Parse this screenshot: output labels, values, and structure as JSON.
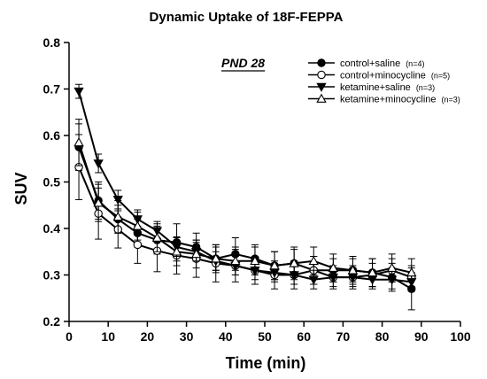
{
  "chart_data": {
    "type": "line",
    "title": "Dynamic Uptake of 18F-FEPPA",
    "xlabel": "Time (min)",
    "ylabel": "SUV",
    "annotation": "PND 28",
    "xlim": [
      0,
      100
    ],
    "ylim": [
      0.2,
      0.8
    ],
    "xticks": [
      "0",
      "10",
      "20",
      "30",
      "40",
      "50",
      "60",
      "70",
      "80",
      "90",
      "100"
    ],
    "yticks": [
      "0.2",
      "0.3",
      "0.4",
      "0.5",
      "0.6",
      "0.7",
      "0.8"
    ],
    "grid": false,
    "legend_position": "top-right",
    "x": [
      2.5,
      7.5,
      12.5,
      17.5,
      22.5,
      27.5,
      32.5,
      37.5,
      42.5,
      47.5,
      52.5,
      57.5,
      62.5,
      67.5,
      72.5,
      77.5,
      82.5,
      87.5
    ],
    "series": [
      {
        "name": "control+saline",
        "n_label": "(n=4)",
        "marker": "filled-circle",
        "values": [
          0.575,
          0.46,
          0.42,
          0.39,
          0.375,
          0.37,
          0.36,
          0.335,
          0.345,
          0.335,
          0.32,
          0.325,
          0.31,
          0.31,
          0.31,
          0.305,
          0.295,
          0.27
        ],
        "errors": [
          0.05,
          0.04,
          0.03,
          0.03,
          0.03,
          0.04,
          0.03,
          0.025,
          0.035,
          0.03,
          0.03,
          0.035,
          0.03,
          0.025,
          0.025,
          0.03,
          0.03,
          0.045
        ]
      },
      {
        "name": "control+minocycline",
        "n_label": "(n=5)",
        "marker": "open-circle",
        "values": [
          0.532,
          0.432,
          0.398,
          0.365,
          0.352,
          0.342,
          0.335,
          0.325,
          0.32,
          0.31,
          0.3,
          0.3,
          0.31,
          0.295,
          0.295,
          0.3,
          0.31,
          0.295
        ],
        "errors": [
          0.07,
          0.055,
          0.04,
          0.04,
          0.045,
          0.04,
          0.04,
          0.04,
          0.035,
          0.03,
          0.03,
          0.03,
          0.03,
          0.025,
          0.025,
          0.025,
          0.025,
          0.025
        ]
      },
      {
        "name": "ketamine+saline",
        "n_label": "(n=3)",
        "marker": "filled-triangle-down",
        "values": [
          0.695,
          0.54,
          0.462,
          0.42,
          0.395,
          0.36,
          0.35,
          0.33,
          0.32,
          0.31,
          0.305,
          0.3,
          0.29,
          0.295,
          0.295,
          0.29,
          0.29,
          0.285
        ],
        "errors": [
          0.015,
          0.02,
          0.02,
          0.02,
          0.02,
          0.02,
          0.02,
          0.02,
          0.02,
          0.02,
          0.02,
          0.02,
          0.02,
          0.02,
          0.02,
          0.02,
          0.02,
          0.02
        ]
      },
      {
        "name": "ketamine+minocycline",
        "n_label": "(n=3)",
        "marker": "open-triangle-up",
        "values": [
          0.585,
          0.455,
          0.425,
          0.405,
          0.38,
          0.35,
          0.345,
          0.335,
          0.33,
          0.33,
          0.32,
          0.325,
          0.33,
          0.315,
          0.31,
          0.305,
          0.315,
          0.305
        ],
        "errors": [
          0.05,
          0.04,
          0.035,
          0.03,
          0.03,
          0.03,
          0.03,
          0.03,
          0.03,
          0.03,
          0.03,
          0.03,
          0.03,
          0.03,
          0.03,
          0.03,
          0.03,
          0.03
        ]
      }
    ]
  }
}
